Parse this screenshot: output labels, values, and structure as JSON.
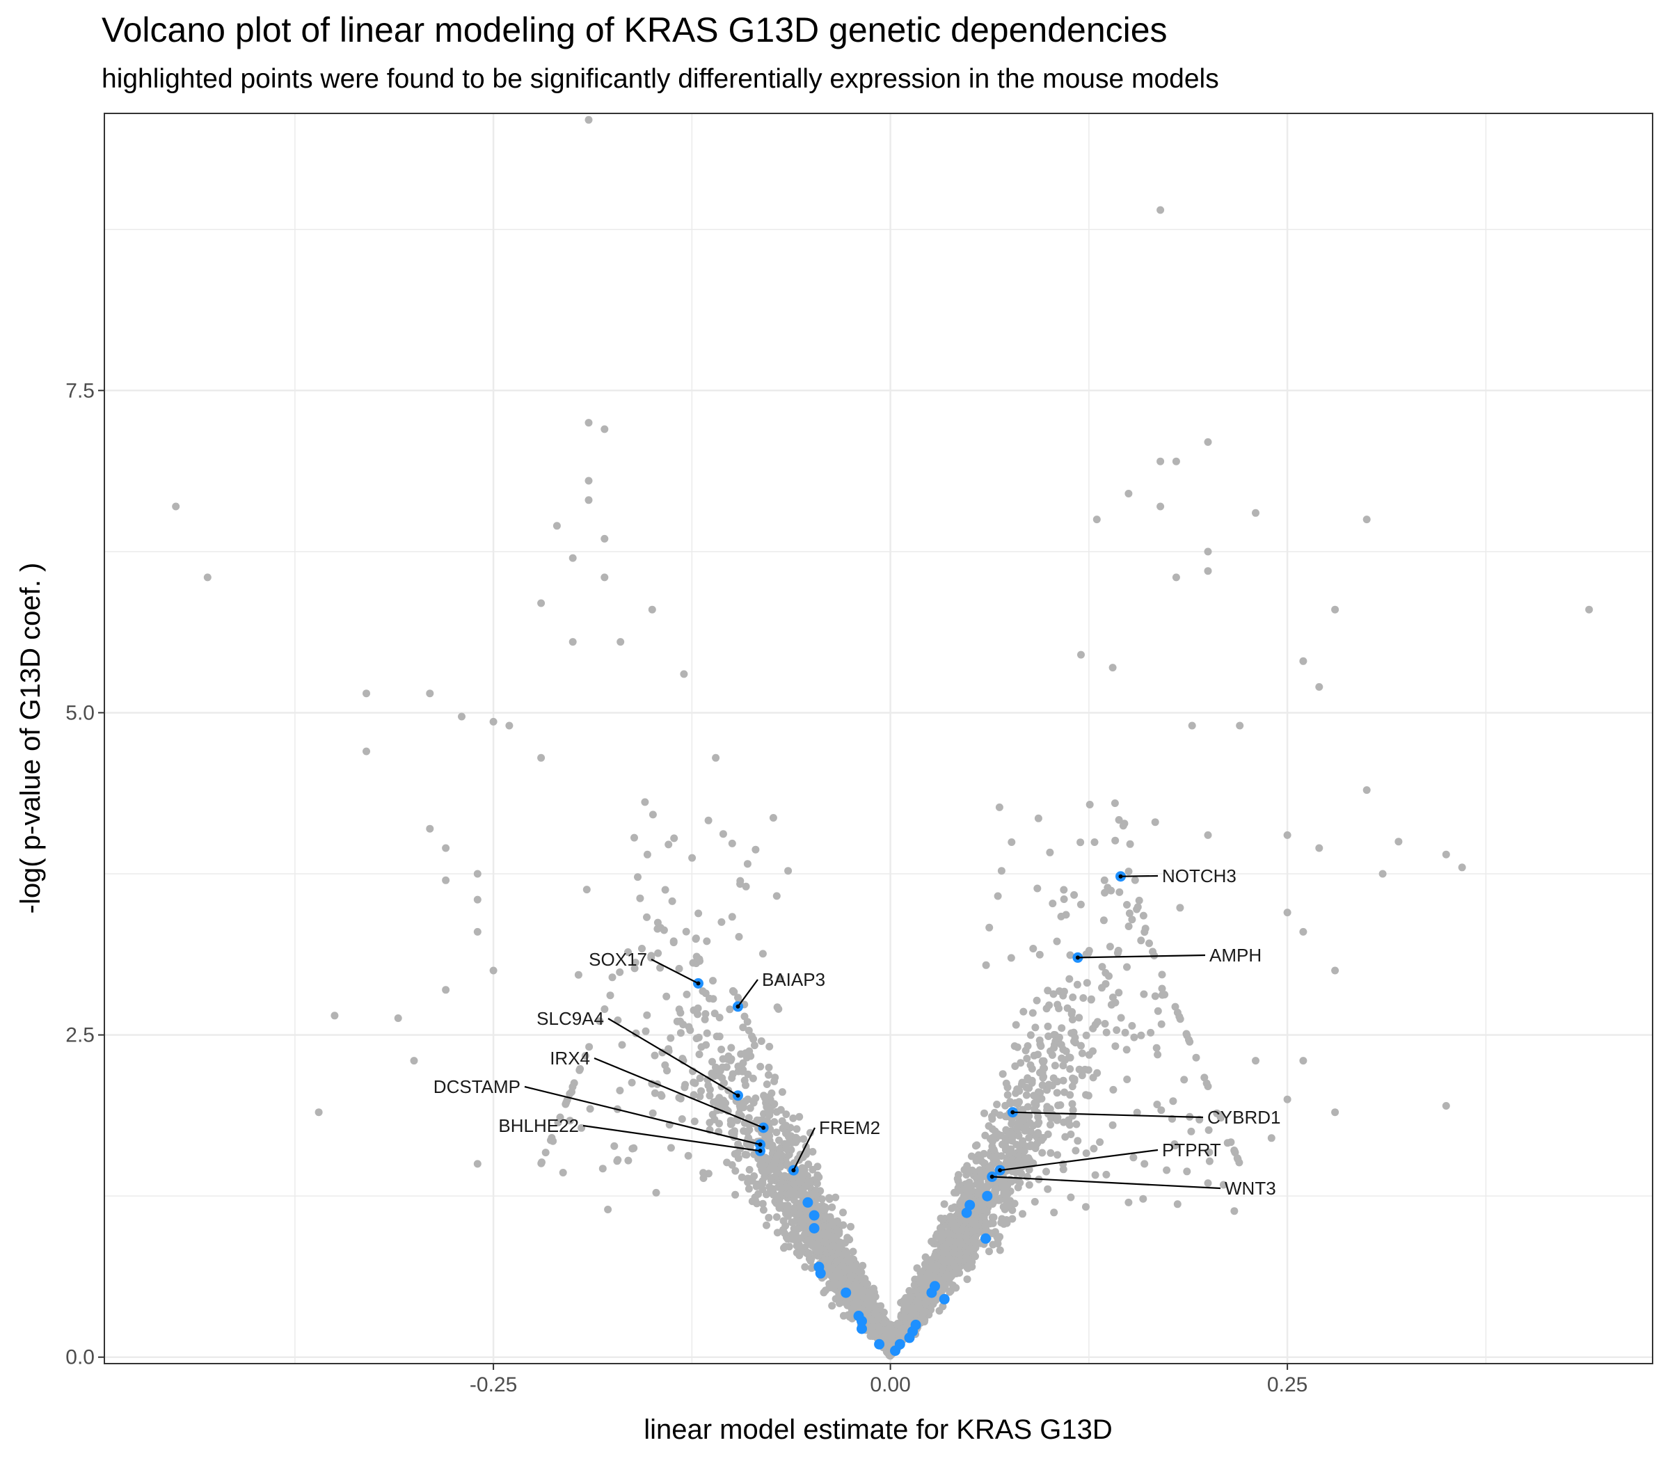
{
  "chart_data": {
    "type": "scatter",
    "title": "Volcano plot of linear modeling of KRAS G13D genetic dependencies",
    "subtitle": "highlighted points were found to be significantly differentially expression in the mouse models",
    "xlabel": "linear model estimate for KRAS G13D",
    "ylabel": "-log( p-value of G13D coef. )",
    "xlim": [
      -0.495,
      0.48
    ],
    "ylim": [
      -0.05,
      9.65
    ],
    "x_ticks": [
      -0.25,
      0.0,
      0.25
    ],
    "x_tick_labels": [
      "-0.25",
      "0.00",
      "0.25"
    ],
    "y_ticks": [
      0.0,
      2.5,
      5.0,
      7.5
    ],
    "y_tick_labels": [
      "0.0",
      "2.5",
      "5.0",
      "7.5"
    ],
    "grid": true,
    "background_color": "#ffffff",
    "grid_color": "#ebebeb",
    "point_color": "#b3b3b3",
    "highlight_color": "#1e90ff",
    "outlier_points": [
      [
        -0.19,
        9.6
      ],
      [
        0.17,
        8.9
      ],
      [
        -0.45,
        6.6
      ],
      [
        -0.43,
        6.05
      ],
      [
        -0.33,
        5.15
      ],
      [
        -0.33,
        4.7
      ],
      [
        -0.29,
        5.15
      ],
      [
        -0.27,
        4.97
      ],
      [
        -0.25,
        4.93
      ],
      [
        -0.24,
        4.9
      ],
      [
        -0.29,
        4.1
      ],
      [
        -0.28,
        3.95
      ],
      [
        -0.28,
        3.7
      ],
      [
        -0.26,
        3.75
      ],
      [
        -0.26,
        3.55
      ],
      [
        -0.26,
        3.3
      ],
      [
        -0.25,
        3.0
      ],
      [
        -0.35,
        2.65
      ],
      [
        -0.31,
        2.63
      ],
      [
        -0.28,
        2.85
      ],
      [
        -0.3,
        2.3
      ],
      [
        -0.26,
        1.5
      ],
      [
        -0.36,
        1.9
      ],
      [
        -0.19,
        7.25
      ],
      [
        -0.18,
        7.2
      ],
      [
        -0.19,
        6.8
      ],
      [
        -0.19,
        6.65
      ],
      [
        -0.21,
        6.45
      ],
      [
        -0.18,
        6.35
      ],
      [
        -0.2,
        6.2
      ],
      [
        -0.18,
        6.05
      ],
      [
        -0.15,
        5.8
      ],
      [
        -0.22,
        5.85
      ],
      [
        -0.2,
        5.55
      ],
      [
        -0.13,
        5.3
      ],
      [
        -0.11,
        4.65
      ],
      [
        -0.22,
        4.65
      ],
      [
        -0.17,
        5.55
      ],
      [
        0.2,
        7.1
      ],
      [
        0.18,
        6.95
      ],
      [
        0.17,
        6.95
      ],
      [
        0.15,
        6.7
      ],
      [
        0.17,
        6.6
      ],
      [
        0.13,
        6.5
      ],
      [
        0.23,
        6.55
      ],
      [
        0.2,
        6.25
      ],
      [
        0.2,
        6.1
      ],
      [
        0.18,
        6.05
      ],
      [
        0.3,
        6.5
      ],
      [
        0.44,
        5.8
      ],
      [
        0.28,
        5.8
      ],
      [
        0.26,
        5.4
      ],
      [
        0.27,
        5.2
      ],
      [
        0.14,
        5.35
      ],
      [
        0.12,
        5.45
      ],
      [
        0.19,
        4.9
      ],
      [
        0.22,
        4.9
      ],
      [
        0.3,
        4.4
      ],
      [
        0.32,
        4.0
      ],
      [
        0.31,
        3.75
      ],
      [
        0.35,
        3.9
      ],
      [
        0.36,
        3.8
      ],
      [
        0.27,
        3.95
      ],
      [
        0.25,
        4.05
      ],
      [
        0.2,
        4.05
      ],
      [
        0.25,
        3.45
      ],
      [
        0.26,
        3.3
      ],
      [
        0.28,
        3.0
      ],
      [
        0.23,
        2.3
      ],
      [
        0.26,
        2.3
      ],
      [
        0.25,
        2.0
      ],
      [
        0.28,
        1.9
      ],
      [
        0.35,
        1.95
      ],
      [
        0.24,
        1.7
      ],
      [
        0.2,
        1.35
      ],
      [
        0.14,
        1.8
      ],
      [
        0.15,
        1.2
      ],
      [
        0.16,
        1.5
      ]
    ],
    "highlighted_points": [
      [
        0.145,
        3.73
      ],
      [
        0.118,
        3.1
      ],
      [
        0.077,
        1.9
      ],
      [
        0.069,
        1.45
      ],
      [
        0.064,
        1.4
      ],
      [
        -0.121,
        2.9
      ],
      [
        -0.096,
        2.72
      ],
      [
        -0.096,
        2.03
      ],
      [
        -0.08,
        1.78
      ],
      [
        -0.082,
        1.65
      ],
      [
        -0.082,
        1.6
      ],
      [
        -0.061,
        1.45
      ],
      [
        -0.052,
        1.2
      ],
      [
        -0.048,
        1.1
      ],
      [
        -0.048,
        1.0
      ],
      [
        -0.045,
        0.7
      ],
      [
        -0.044,
        0.65
      ],
      [
        -0.028,
        0.5
      ],
      [
        -0.02,
        0.32
      ],
      [
        -0.018,
        0.28
      ],
      [
        -0.018,
        0.22
      ],
      [
        -0.007,
        0.1
      ],
      [
        0.003,
        0.05
      ],
      [
        0.006,
        0.1
      ],
      [
        0.012,
        0.15
      ],
      [
        0.014,
        0.2
      ],
      [
        0.016,
        0.25
      ],
      [
        0.026,
        0.5
      ],
      [
        0.028,
        0.55
      ],
      [
        0.034,
        0.45
      ],
      [
        0.048,
        1.12
      ],
      [
        0.05,
        1.18
      ],
      [
        0.061,
        1.25
      ],
      [
        0.06,
        0.92
      ]
    ],
    "labeled_genes": [
      {
        "name": "NOTCH3",
        "x": 0.145,
        "y": 3.73
      },
      {
        "name": "AMPH",
        "x": 0.118,
        "y": 3.1
      },
      {
        "name": "CYBRD1",
        "x": 0.077,
        "y": 1.9
      },
      {
        "name": "PTPRT",
        "x": 0.069,
        "y": 1.45
      },
      {
        "name": "WNT3",
        "x": 0.064,
        "y": 1.4
      },
      {
        "name": "SOX17",
        "x": -0.121,
        "y": 2.9
      },
      {
        "name": "BAIAP3",
        "x": -0.096,
        "y": 2.72
      },
      {
        "name": "SLC9A4",
        "x": -0.096,
        "y": 2.03
      },
      {
        "name": "IRX4",
        "x": -0.08,
        "y": 1.78
      },
      {
        "name": "DCSTAMP",
        "x": -0.082,
        "y": 1.65
      },
      {
        "name": "BHLHE22",
        "x": -0.082,
        "y": 1.6
      },
      {
        "name": "FREM2",
        "x": -0.061,
        "y": 1.45
      }
    ]
  }
}
